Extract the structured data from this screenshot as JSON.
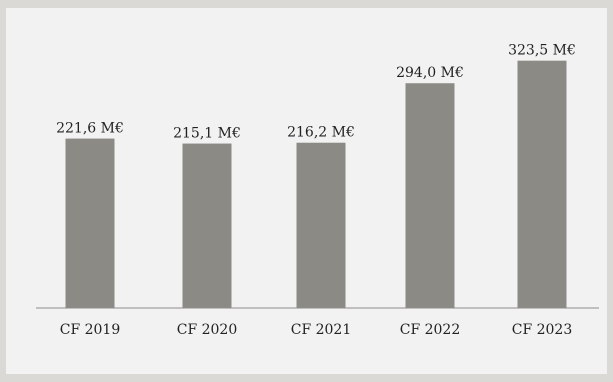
{
  "chart_data": {
    "type": "bar",
    "categories": [
      "CF 2019",
      "CF 2020",
      "CF 2021",
      "CF 2022",
      "CF 2023"
    ],
    "values": [
      221.6,
      215.1,
      216.2,
      294.0,
      323.5
    ],
    "data_labels": [
      "221,6 M€",
      "215,1 M€",
      "216,2 M€",
      "294,0 M€",
      "323,5 M€"
    ],
    "title": "",
    "xlabel": "",
    "ylabel": "",
    "ylim": [
      0,
      340
    ],
    "grid": false,
    "legend": "none",
    "bar_color": "#8b8a85",
    "axis_color": "#8c8c8c",
    "background": "#f2f2f2",
    "frame_color": "#dad9d6"
  }
}
